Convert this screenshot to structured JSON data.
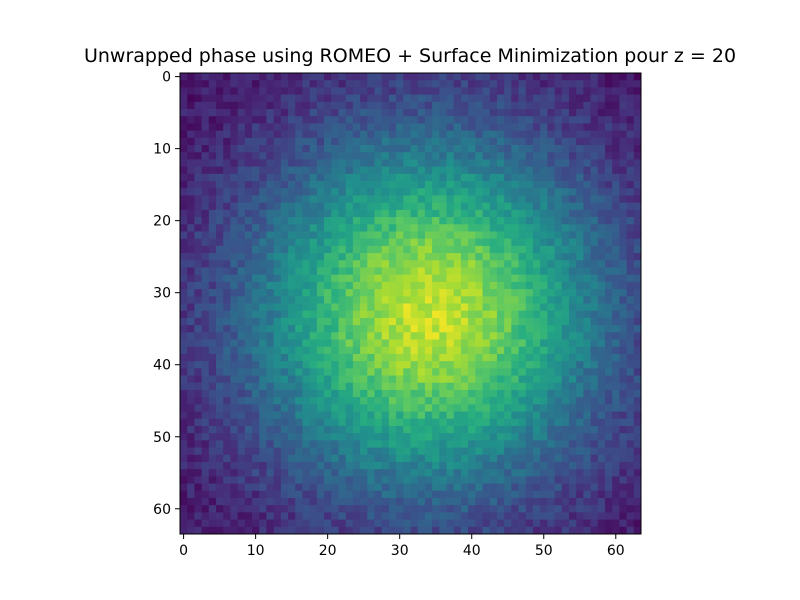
{
  "chart_data": {
    "type": "heatmap",
    "title": "Unwrapped phase using ROMEO + Surface Minimization pour z = 20",
    "xlabel": "",
    "ylabel": "",
    "grid": false,
    "colormap": "viridis",
    "shape": [
      64,
      64
    ],
    "xlim": [
      -0.5,
      63.5
    ],
    "ylim": [
      63.5,
      -0.5
    ],
    "x_ticks": [
      0,
      10,
      20,
      30,
      40,
      50,
      60
    ],
    "y_ticks": [
      0,
      10,
      20,
      30,
      40,
      50,
      60
    ],
    "x_tick_labels": [
      "0",
      "10",
      "20",
      "30",
      "40",
      "50",
      "60"
    ],
    "y_tick_labels": [
      "0",
      "10",
      "20",
      "30",
      "40",
      "50",
      "60"
    ],
    "value_model": {
      "form": "gaussian_plus_noise",
      "center_row": 33,
      "center_col": 34,
      "sigma": 17,
      "min_value": 0.05,
      "peak_value": 0.92,
      "noise_amplitude": 0.07
    }
  }
}
